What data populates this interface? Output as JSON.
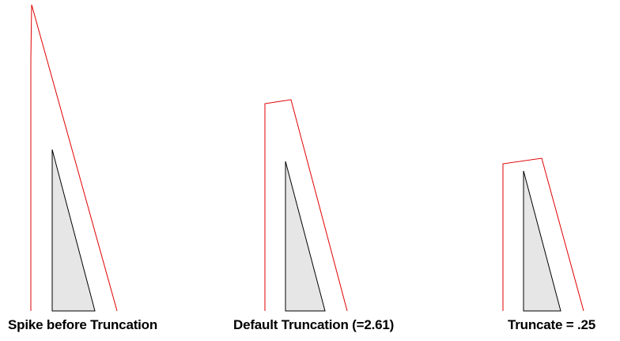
{
  "colors": {
    "background": "#ffffff",
    "outline_stroke": "#e00000",
    "triangle_fill": "#e6e6e6",
    "triangle_stroke": "#000000"
  },
  "panels": [
    {
      "caption": "Spike before Truncation"
    },
    {
      "caption": "Default Truncation (=2.61)"
    },
    {
      "caption": "Truncate = .25"
    }
  ]
}
